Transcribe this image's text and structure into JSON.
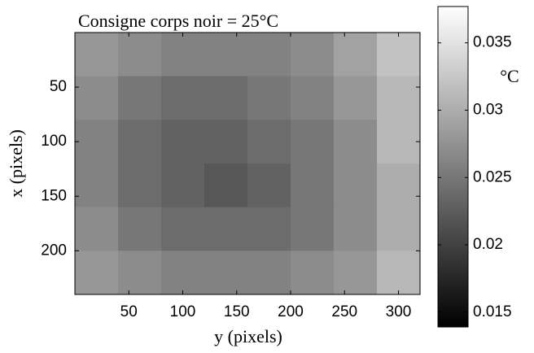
{
  "chart_data": {
    "type": "heatmap",
    "title": "Consigne corps noir = 25°C",
    "x_label": "y (pixels)",
    "y_label": "x (pixels)",
    "x": [
      20,
      60,
      100,
      140,
      180,
      220,
      260,
      300
    ],
    "y": [
      20,
      60,
      100,
      140,
      180,
      220
    ],
    "z": [
      [
        0.028,
        0.027,
        0.026,
        0.026,
        0.026,
        0.027,
        0.029,
        0.032
      ],
      [
        0.027,
        0.025,
        0.024,
        0.024,
        0.025,
        0.026,
        0.028,
        0.031
      ],
      [
        0.026,
        0.024,
        0.023,
        0.023,
        0.024,
        0.025,
        0.027,
        0.031
      ],
      [
        0.026,
        0.024,
        0.023,
        0.022,
        0.023,
        0.025,
        0.027,
        0.03
      ],
      [
        0.027,
        0.025,
        0.024,
        0.024,
        0.024,
        0.025,
        0.027,
        0.03
      ],
      [
        0.028,
        0.027,
        0.026,
        0.026,
        0.026,
        0.027,
        0.028,
        0.031
      ]
    ],
    "xlim": [
      0,
      320
    ],
    "ylim": [
      0,
      240
    ],
    "xticks": [
      50,
      100,
      150,
      200,
      250,
      300
    ],
    "yticks": [
      50,
      100,
      150,
      200
    ],
    "colormap": "gray",
    "colorbar": {
      "label": "°C",
      "lim": [
        0.0139,
        0.0377
      ],
      "ticks": [
        0.015,
        0.02,
        0.025,
        0.03,
        0.035
      ]
    }
  }
}
